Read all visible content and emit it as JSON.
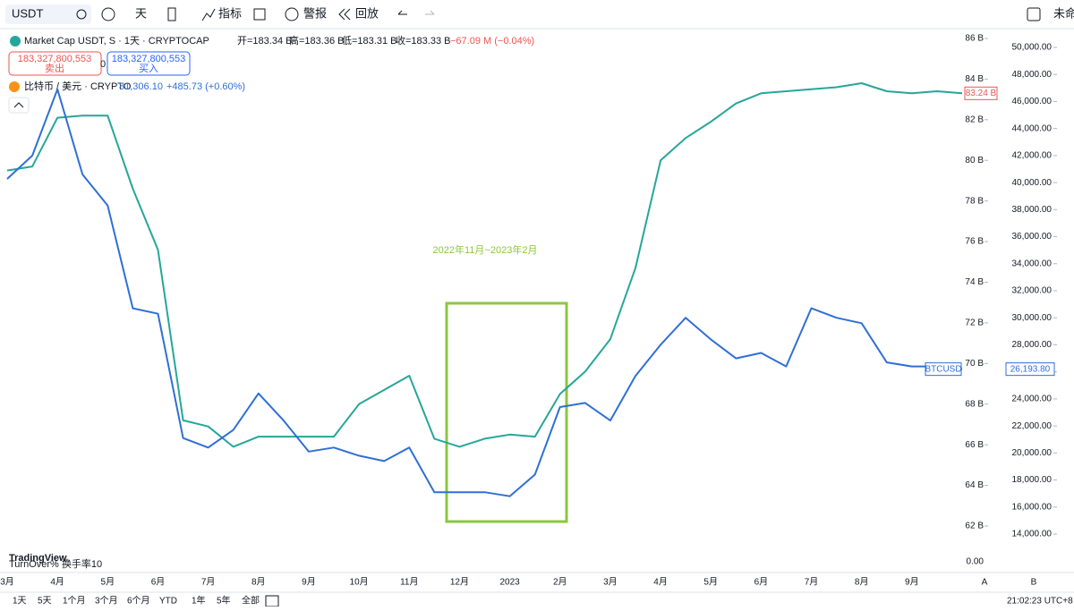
{
  "toolbar": {
    "symbol": "USDT",
    "interval": "天",
    "indicators": "指标",
    "alert": "警报",
    "replay": "回放",
    "layout_name": "未命"
  },
  "legend": {
    "main_title": "Market Cap USDT, S · 1天 · CRYPTOCAP",
    "ohlc": [
      "开=183.34 B",
      "高=183.36 B",
      "低=183.31 B",
      "收=183.33 B",
      "−67.09 M (−0.04%)"
    ],
    "sell_price": "183,327,800,553",
    "sell_label": "卖出",
    "spread": "0",
    "buy_price": "183,327,800,553",
    "buy_label": "买入",
    "compare_title": "比特币 / 美元 · CRYPTO",
    "compare_price": "81,306.10",
    "compare_change": "+485.73 (+0.60%)"
  },
  "chart_data": {
    "type": "line",
    "annotation": "2022年11月~2023年2月",
    "categories": [
      "3月",
      null,
      "4月",
      null,
      "5月",
      null,
      "6月",
      null,
      "7月",
      null,
      "8月",
      null,
      "9月",
      null,
      "10月",
      null,
      "11月",
      null,
      "12月",
      null,
      "2023",
      null,
      "2月",
      null,
      "3月",
      null,
      "4月",
      null,
      "5月",
      null,
      "6月",
      null,
      "7月",
      null,
      "8月",
      null,
      "9月",
      null,
      null
    ],
    "series": [
      {
        "name": "USDT",
        "color": "#26a69a",
        "last_label": "83.24 B",
        "last_color": "#ef5350",
        "values": [
          79.5,
          79.7,
          82.1,
          82.2,
          82.2,
          78.6,
          75.6,
          67.2,
          66.9,
          65.9,
          66.4,
          66.4,
          66.4,
          66.4,
          68.0,
          68.7,
          69.4,
          66.3,
          65.9,
          66.3,
          66.5,
          66.4,
          68.5,
          69.6,
          71.2,
          74.7,
          80.0,
          81.1,
          81.9,
          82.8,
          83.3,
          83.4,
          83.5,
          83.6,
          83.8,
          83.4,
          83.3,
          83.4,
          83.3
        ]
      },
      {
        "name": "BTCUSD",
        "color": "#2f6fd6",
        "axis": "y2",
        "last_label": "26,193.80",
        "values": [
          40270,
          42000,
          46900,
          40600,
          38300,
          30700,
          30300,
          21100,
          20400,
          21700,
          24400,
          22400,
          20100,
          20400,
          19800,
          19400,
          20400,
          17100,
          17100,
          17100,
          16800,
          18400,
          23400,
          23700,
          22400,
          25700,
          28000,
          30000,
          28400,
          27000,
          27400,
          26400,
          30700,
          30000,
          29600,
          26700,
          26400,
          26400,
          26200
        ]
      }
    ],
    "ylim": [
      62,
      86
    ],
    "yticks": [
      {
        "value": 62,
        "label": "62 B"
      },
      {
        "value": 64,
        "label": "64 B"
      },
      {
        "value": 66,
        "label": "66 B"
      },
      {
        "value": 68,
        "label": "68 B"
      },
      {
        "value": 70,
        "label": "70 B"
      },
      {
        "value": 72,
        "label": "72 B"
      },
      {
        "value": 74,
        "label": "74 B"
      },
      {
        "value": 76,
        "label": "76 B"
      },
      {
        "value": 78,
        "label": "78 B"
      },
      {
        "value": 80,
        "label": "80 B"
      },
      {
        "value": 82,
        "label": "82 B"
      },
      {
        "value": 84,
        "label": "84 B"
      },
      {
        "value": 86,
        "label": "86 B"
      }
    ],
    "y2lim": [
      14000,
      50000
    ],
    "y2ticks": [
      {
        "value": 14000,
        "label": "14,000.00"
      },
      {
        "value": 16000,
        "label": "16,000.00"
      },
      {
        "value": 18000,
        "label": "18,000.00"
      },
      {
        "value": 20000,
        "label": "20,000.00"
      },
      {
        "value": 22000,
        "label": "22,000.00"
      },
      {
        "value": 24000,
        "label": "24,000.00"
      },
      {
        "value": 26000,
        "label": "26,000.00"
      },
      {
        "value": 28000,
        "label": "28,000.00"
      },
      {
        "value": 30000,
        "label": "30,000.00"
      },
      {
        "value": 32000,
        "label": "32,000.00"
      },
      {
        "value": 34000,
        "label": "34,000.00"
      },
      {
        "value": 36000,
        "label": "36,000.00"
      },
      {
        "value": 38000,
        "label": "38,000.00"
      },
      {
        "value": 40000,
        "label": "40,000.00"
      },
      {
        "value": 42000,
        "label": "42,000.00"
      },
      {
        "value": 44000,
        "label": "44,000.00"
      },
      {
        "value": 46000,
        "label": "46,000.00"
      },
      {
        "value": 48000,
        "label": "48,000.00"
      },
      {
        "value": 50000,
        "label": "50,000.00"
      }
    ],
    "grid": false
  },
  "volume_pane": {
    "label": "TurnOver% 换手率10",
    "axis_label": "0.00"
  },
  "watermark": "TradingView",
  "scale_buttons": [
    "A",
    "B"
  ],
  "timeframes": [
    "1天",
    "5天",
    "1个月",
    "3个月",
    "6个月",
    "YTD",
    "1年",
    "5年",
    "全部"
  ],
  "clock": "21:02:23 UTC+8"
}
